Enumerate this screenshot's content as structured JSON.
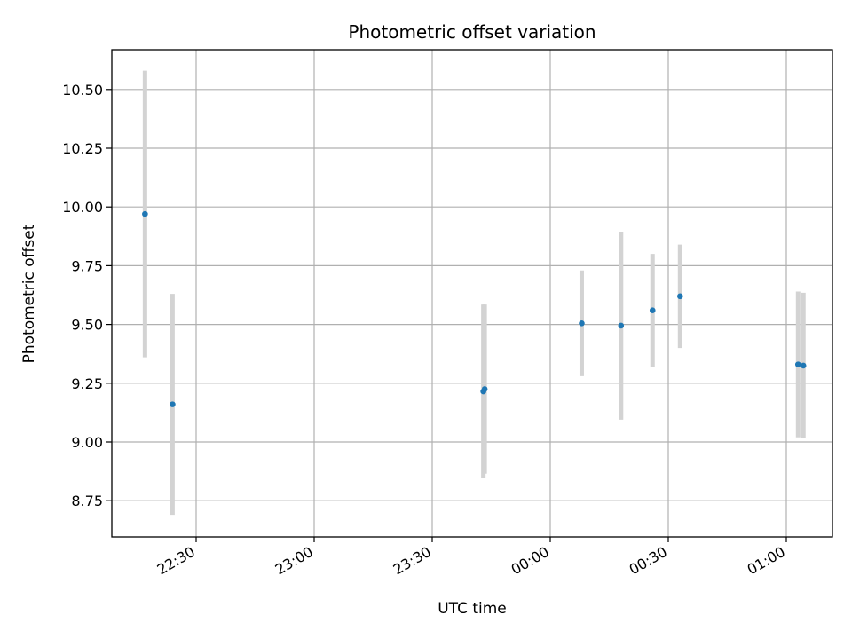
{
  "chart_data": {
    "type": "scatter",
    "title": "Photometric offset variation",
    "xlabel": "UTC time",
    "ylabel": "Photometric offset",
    "x_tick_labels": [
      "22:30",
      "23:00",
      "23:30",
      "00:00",
      "00:30",
      "01:00"
    ],
    "y_tick_labels": [
      "8.75",
      "9.00",
      "9.25",
      "9.50",
      "9.75",
      "10.00",
      "10.25",
      "10.50"
    ],
    "grid": true,
    "marker_color": "#1f77b4",
    "errorbar_color": "#d3d3d3",
    "points": [
      {
        "x": "22:17",
        "y": 9.97,
        "yerr": 0.61
      },
      {
        "x": "22:24",
        "y": 9.16,
        "yerr": 0.47
      },
      {
        "x": "23:43",
        "y": 9.215,
        "yerr": 0.37
      },
      {
        "x": "23:43",
        "y": 9.225,
        "yerr": 0.36
      },
      {
        "x": "00:08",
        "y": 9.505,
        "yerr": 0.225
      },
      {
        "x": "00:18",
        "y": 9.495,
        "yerr": 0.4
      },
      {
        "x": "00:26",
        "y": 9.56,
        "yerr": 0.24
      },
      {
        "x": "00:33",
        "y": 9.62,
        "yerr": 0.22
      },
      {
        "x": "01:03",
        "y": 9.33,
        "yerr": 0.31
      },
      {
        "x": "01:04",
        "y": 9.325,
        "yerr": 0.31
      }
    ]
  }
}
